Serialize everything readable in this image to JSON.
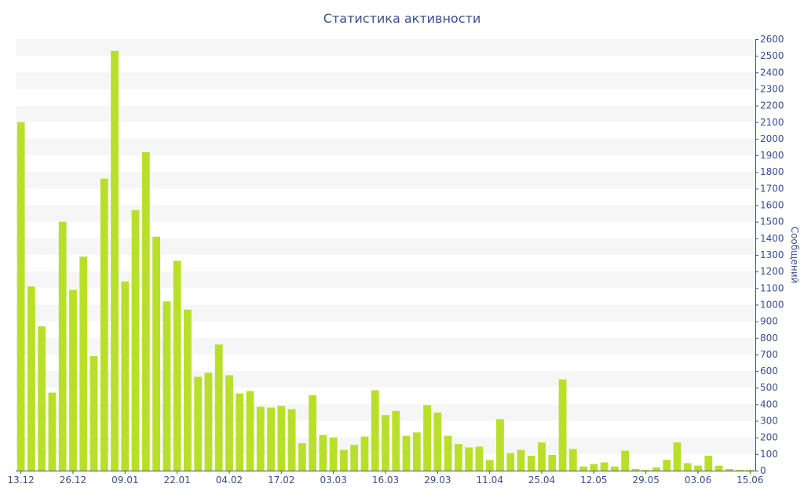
{
  "chart_data": {
    "type": "bar",
    "title": "Статистика активности",
    "xlabel": "",
    "ylabel": "Сообщений",
    "ylim": [
      0,
      2600
    ],
    "ytick_step": 100,
    "grid": "horizontal alternating bands",
    "y_axis_side": "right",
    "colors": {
      "bar": "#b8e02a",
      "band": "#f6f6f6",
      "axis": "#3b4e8c",
      "text": "#3b4e8c"
    },
    "x_tick_labels": [
      {
        "index": 0,
        "label": "13.12"
      },
      {
        "index": 5,
        "label": "26.12"
      },
      {
        "index": 10,
        "label": "09.01"
      },
      {
        "index": 15,
        "label": "22.01"
      },
      {
        "index": 20,
        "label": "04.02"
      },
      {
        "index": 25,
        "label": "17.02"
      },
      {
        "index": 30,
        "label": "03.03"
      },
      {
        "index": 35,
        "label": "16.03"
      },
      {
        "index": 40,
        "label": "29.03"
      },
      {
        "index": 45,
        "label": "11.04"
      },
      {
        "index": 50,
        "label": "25.04"
      },
      {
        "index": 55,
        "label": "12.05"
      },
      {
        "index": 60,
        "label": "29.05"
      },
      {
        "index": 65,
        "label": "03.06"
      },
      {
        "index": 70,
        "label": "15.06"
      }
    ],
    "values": [
      2100,
      1110,
      870,
      470,
      1500,
      1090,
      1290,
      690,
      1760,
      2530,
      1140,
      1570,
      1920,
      1410,
      1020,
      1265,
      970,
      565,
      590,
      760,
      575,
      465,
      480,
      385,
      380,
      390,
      370,
      165,
      455,
      215,
      200,
      125,
      155,
      205,
      485,
      335,
      360,
      210,
      230,
      395,
      350,
      210,
      160,
      140,
      145,
      65,
      310,
      105,
      125,
      90,
      170,
      95,
      550,
      130,
      25,
      40,
      50,
      25,
      120,
      10,
      5,
      20,
      65,
      170,
      45,
      30,
      90,
      30,
      10,
      5,
      5
    ]
  }
}
